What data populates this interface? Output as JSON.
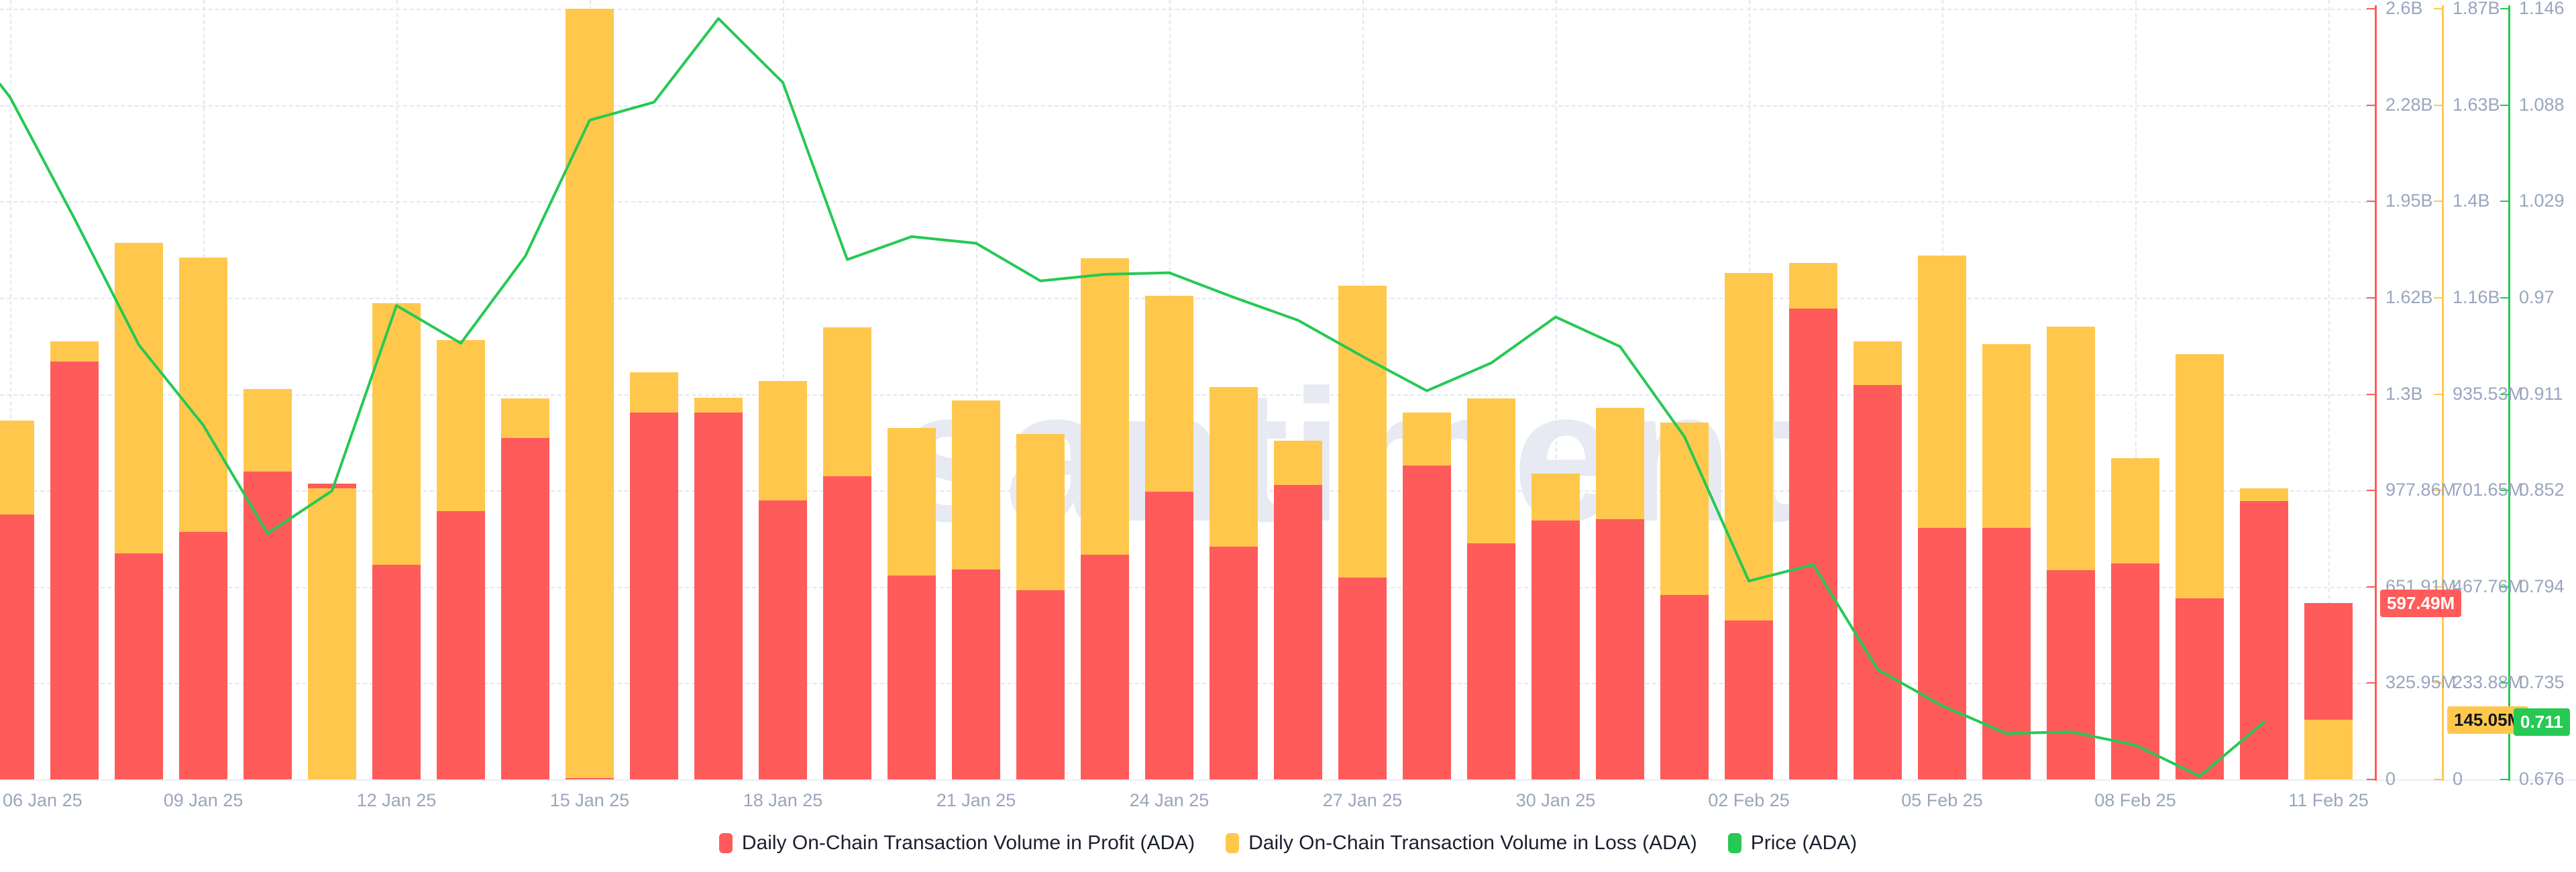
{
  "chart_data": {
    "type": "bar",
    "title": "",
    "grid": true,
    "legend_position": "bottom",
    "watermark": "santiment.",
    "categories": [
      "2025-01-06",
      "2025-01-07",
      "2025-01-08",
      "2025-01-09",
      "2025-01-10",
      "2025-01-11",
      "2025-01-12",
      "2025-01-13",
      "2025-01-14",
      "2025-01-15",
      "2025-01-16",
      "2025-01-17",
      "2025-01-18",
      "2025-01-19",
      "2025-01-20",
      "2025-01-21",
      "2025-01-22",
      "2025-01-23",
      "2025-01-24",
      "2025-01-25",
      "2025-01-26",
      "2025-01-27",
      "2025-01-28",
      "2025-01-29",
      "2025-01-30",
      "2025-01-31",
      "2025-02-01",
      "2025-02-02",
      "2025-02-03",
      "2025-02-04",
      "2025-02-05",
      "2025-02-06",
      "2025-02-07",
      "2025-02-08",
      "2025-02-09",
      "2025-02-10",
      "2025-02-11"
    ],
    "x_tick_labels": [
      "06 Jan 25",
      "09 Jan 25",
      "12 Jan 25",
      "15 Jan 25",
      "18 Jan 25",
      "21 Jan 25",
      "24 Jan 25",
      "27 Jan 25",
      "30 Jan 25",
      "02 Feb 25",
      "05 Feb 25",
      "08 Feb 25",
      "11 Feb 25"
    ],
    "series": [
      {
        "name": "Daily On-Chain Transaction Volume in Profit (ADA)",
        "type": "bar",
        "color": "#ff5b5b",
        "axis_max_millions": 2607.64,
        "values_millions": [
          897,
          1414,
          765,
          838,
          1042,
          1001,
          726,
          908,
          1156,
          4,
          1242,
          1242,
          944,
          1026,
          690,
          710,
          640,
          760,
          974,
          788,
          997,
          683,
          1062,
          799,
          876,
          881,
          624,
          538,
          1594,
          1335,
          851,
          851,
          708,
          731,
          613,
          942,
          597.49
        ]
      },
      {
        "name": "Daily On-Chain Transaction Volume in Loss (ADA)",
        "type": "bar",
        "color": "#ffc84d",
        "axis_max_millions": 1871.04,
        "values_millions": [
          871,
          1063,
          1303,
          1267,
          948,
          707,
          1156,
          1067,
          925,
          1871,
          988,
          927,
          967,
          1098,
          853,
          920,
          839,
          1265,
          1174,
          953,
          822,
          1198,
          891,
          925,
          743,
          902,
          866,
          1230,
          1254,
          1063,
          1272,
          1057,
          1099,
          780,
          1032,
          707,
          145.05
        ]
      },
      {
        "name": "Price (ADA)",
        "type": "line",
        "color": "#26c953",
        "axis_min": 0.676,
        "axis_max": 1.146,
        "values": [
          1.092,
          1.018,
          0.941,
          0.892,
          0.826,
          0.852,
          0.965,
          0.942,
          0.995,
          1.078,
          1.089,
          1.14,
          1.101,
          0.993,
          1.007,
          1.003,
          0.98,
          0.984,
          0.985,
          0.97,
          0.956,
          0.934,
          0.913,
          0.93,
          0.958,
          0.94,
          0.885,
          0.797,
          0.807,
          0.743,
          0.721,
          0.704,
          0.705,
          0.697,
          0.678,
          0.711,
          null
        ],
        "edge_entry_price": 1.1
      }
    ],
    "axes": {
      "red": {
        "color": "#ff5b5b",
        "tick_labels": [
          "2.6B",
          "2.28B",
          "1.95B",
          "1.62B",
          "1.3B",
          "977.86M",
          "651.91M",
          "325.95M",
          "0"
        ]
      },
      "yellow": {
        "color": "#ffc84d",
        "tick_labels": [
          "1.87B",
          "1.63B",
          "1.4B",
          "1.16B",
          "935.53M",
          "701.65M",
          "467.76M",
          "233.88M",
          "0"
        ]
      },
      "green": {
        "color": "#26c953",
        "tick_labels": [
          "1.146",
          "1.088",
          "1.029",
          "0.97",
          "0.911",
          "0.852",
          "0.794",
          "0.735",
          "0.676"
        ]
      }
    },
    "badges": {
      "profit_current": "597.49M",
      "loss_current": "145.05M",
      "price_current": "0.711"
    }
  },
  "legend": {
    "items": [
      {
        "label": "Daily On-Chain Transaction Volume in Profit (ADA)",
        "color": "#ff5b5b"
      },
      {
        "label": "Daily On-Chain Transaction Volume in Loss (ADA)",
        "color": "#ffc84d"
      },
      {
        "label": "Price (ADA)",
        "color": "#26c953"
      }
    ]
  },
  "watermark_text": "santiment."
}
